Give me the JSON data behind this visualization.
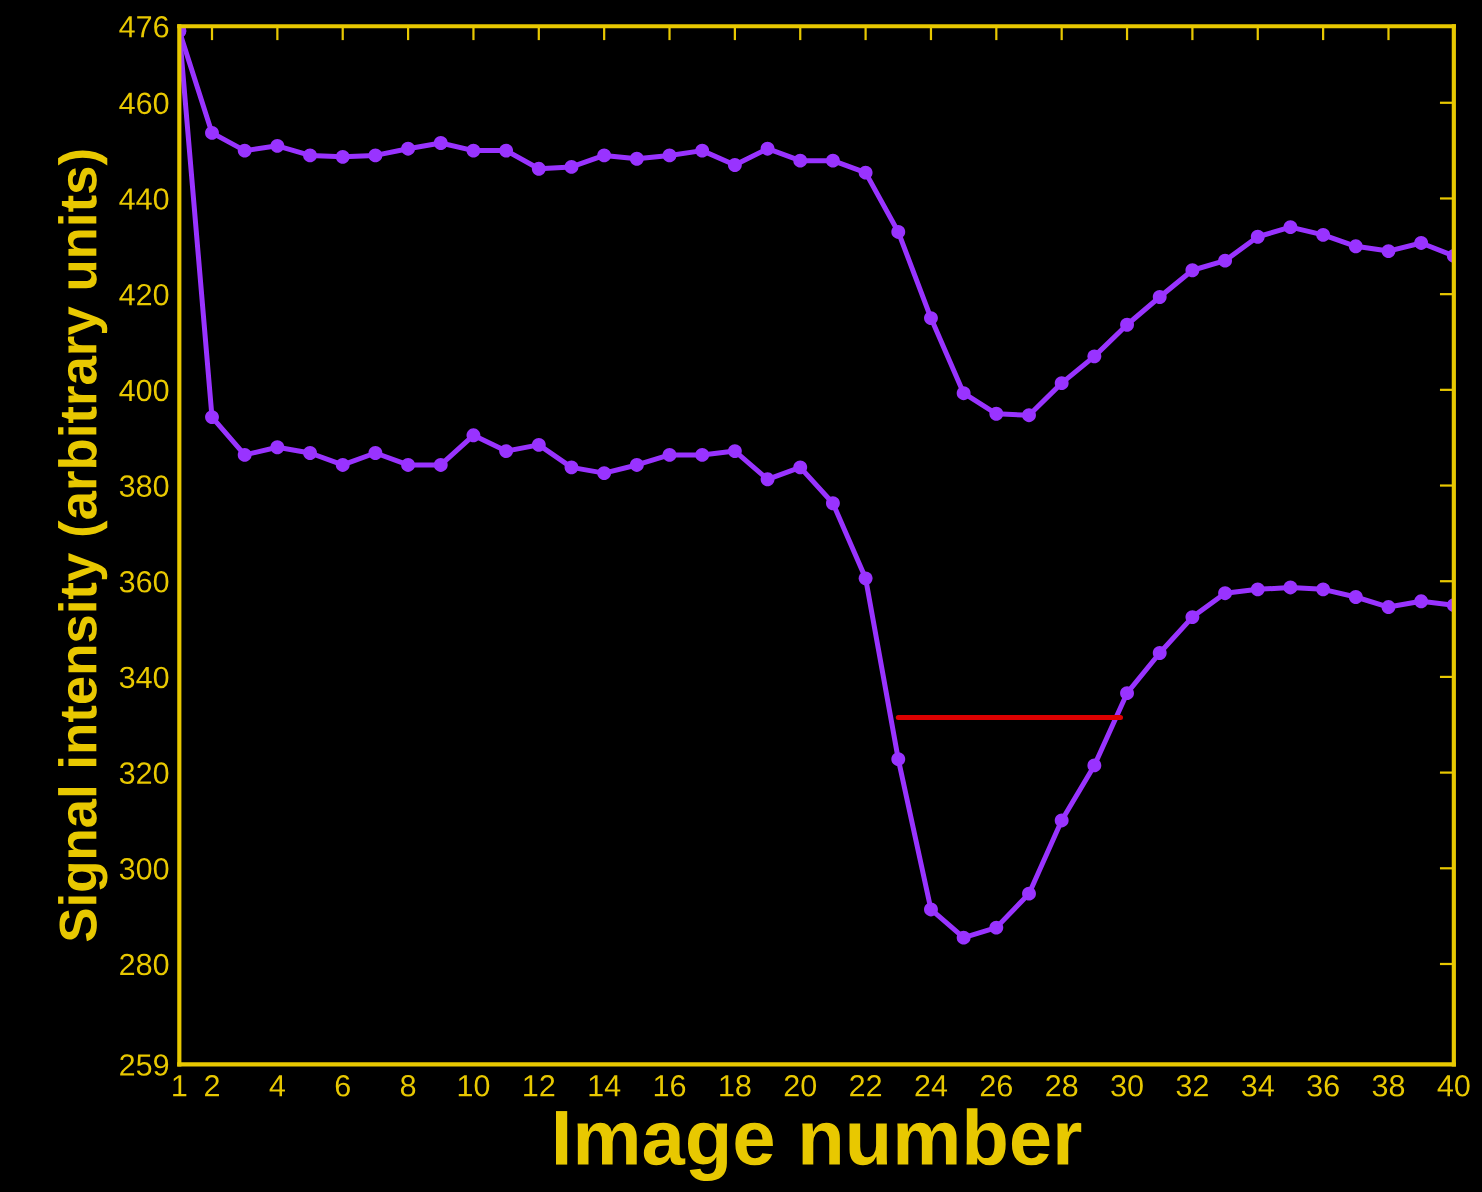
{
  "chart_data": {
    "type": "line",
    "xlabel": "Image number",
    "ylabel": "Signal intensity (arbitrary units)",
    "x": [
      1,
      2,
      3,
      4,
      5,
      6,
      7,
      8,
      9,
      10,
      11,
      12,
      13,
      14,
      15,
      16,
      17,
      18,
      19,
      20,
      21,
      22,
      23,
      24,
      25,
      26,
      27,
      28,
      29,
      30,
      31,
      32,
      33,
      34,
      35,
      36,
      37,
      38,
      39,
      40
    ],
    "series": [
      {
        "color": "#9933ff",
        "values": [
          475,
          453.7,
          450,
          451,
          449,
          448.7,
          449,
          450.4,
          451.6,
          450,
          450,
          446.2,
          446.6,
          449,
          448.3,
          449,
          450,
          447,
          450.4,
          447.9,
          447.9,
          445.4,
          433,
          415,
          399.3,
          395,
          394.7,
          401.4,
          407,
          413.6,
          419.4,
          425,
          427,
          432,
          434,
          432.4,
          430,
          429,
          430.7,
          428
        ]
      },
      {
        "color": "#9933ff",
        "values": [
          475,
          394.3,
          386.4,
          388,
          386.8,
          384.3,
          386.8,
          384.3,
          384.3,
          390.5,
          387.2,
          388.5,
          383.8,
          382.6,
          384.3,
          386.4,
          386.4,
          387.2,
          381.3,
          383.8,
          376.3,
          360.6,
          322.8,
          291.4,
          285.5,
          287.6,
          294.7,
          310,
          321.5,
          336.6,
          345,
          352.5,
          357.5,
          358.3,
          358.7,
          358.3,
          356.7,
          354.6,
          355.8,
          355
        ]
      },
      {
        "type": "line",
        "color": "#dd0000",
        "marker": "none",
        "x": [
          23,
          29.8
        ],
        "values": [
          331.5,
          331.5
        ]
      }
    ],
    "marker": "circle",
    "line_style": "solid",
    "grid": false,
    "legend": false,
    "xlim": [
      1,
      40
    ],
    "ylim": [
      259,
      476
    ],
    "xticks": [
      1,
      2,
      4,
      6,
      8,
      10,
      12,
      14,
      16,
      18,
      20,
      22,
      24,
      26,
      28,
      30,
      32,
      34,
      36,
      38,
      40
    ],
    "yticks": [
      259,
      280,
      300,
      320,
      340,
      360,
      380,
      400,
      420,
      440,
      460,
      476
    ]
  }
}
